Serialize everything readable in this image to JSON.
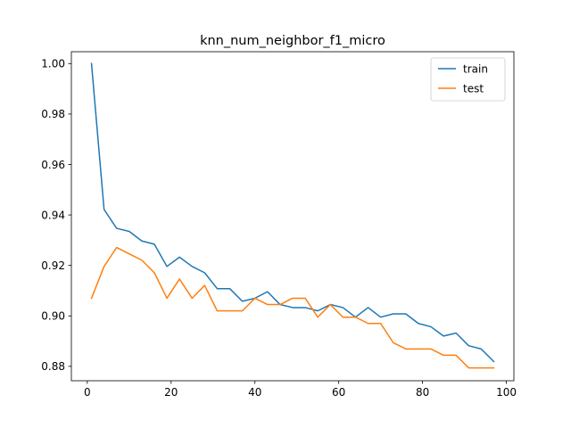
{
  "chart_data": {
    "type": "line",
    "title": "knn_num_neighbor_f1_micro",
    "xlabel": "",
    "ylabel": "",
    "xlim": [
      -3.8,
      101.8
    ],
    "ylim": [
      0.8743,
      1.0047
    ],
    "xticks": [
      0,
      20,
      40,
      60,
      80,
      100
    ],
    "xtick_labels": [
      "0",
      "20",
      "40",
      "60",
      "80",
      "100"
    ],
    "yticks": [
      0.88,
      0.9,
      0.92,
      0.94,
      0.96,
      0.98,
      1.0
    ],
    "ytick_labels": [
      "0.88",
      "0.90",
      "0.92",
      "0.94",
      "0.96",
      "0.98",
      "1.00"
    ],
    "grid": false,
    "legend_position": "top-right",
    "x": [
      1,
      4,
      7,
      10,
      13,
      16,
      19,
      22,
      25,
      28,
      31,
      34,
      37,
      40,
      43,
      46,
      49,
      52,
      55,
      58,
      61,
      64,
      67,
      70,
      73,
      76,
      79,
      82,
      85,
      88,
      91,
      94,
      97
    ],
    "series": [
      {
        "name": "train",
        "color": "#1f77b4",
        "values": [
          1.0,
          0.9422,
          0.9347,
          0.9335,
          0.9297,
          0.9284,
          0.9196,
          0.9233,
          0.9196,
          0.9171,
          0.9108,
          0.9108,
          0.9058,
          0.907,
          0.9096,
          0.9045,
          0.9033,
          0.9033,
          0.902,
          0.9045,
          0.9033,
          0.8995,
          0.9033,
          0.8995,
          0.9008,
          0.9008,
          0.897,
          0.8957,
          0.892,
          0.8932,
          0.8882,
          0.8869,
          0.8819
        ]
      },
      {
        "name": "test",
        "color": "#ff7f0e",
        "values": [
          0.907,
          0.9196,
          0.9271,
          0.9246,
          0.9221,
          0.9171,
          0.907,
          0.9146,
          0.907,
          0.9121,
          0.902,
          0.902,
          0.902,
          0.907,
          0.9045,
          0.9045,
          0.907,
          0.907,
          0.8995,
          0.9045,
          0.8995,
          0.8995,
          0.897,
          0.897,
          0.8894,
          0.8869,
          0.8869,
          0.8869,
          0.8844,
          0.8844,
          0.8794,
          0.8794,
          0.8794
        ]
      }
    ]
  }
}
